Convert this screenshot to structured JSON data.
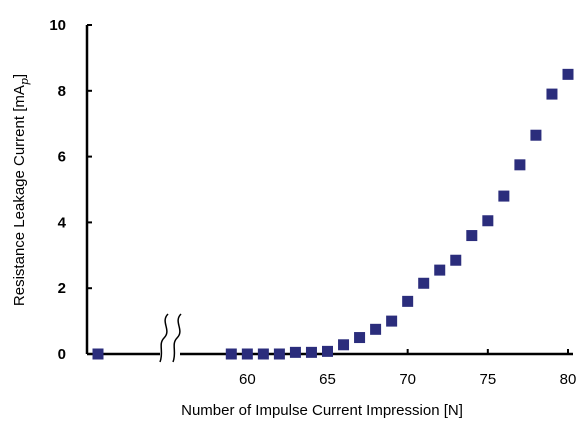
{
  "chart_data": {
    "type": "scatter",
    "title": "",
    "xlabel": "Number of Impulse Current Impression [N]",
    "ylabel": "Resistance Leakage Current [mA",
    "ylabel_sub": "p",
    "ylabel_close": "]",
    "xlim": [
      50,
      80
    ],
    "ylim": [
      0,
      10
    ],
    "x_ticks": [
      "60",
      "65",
      "70",
      "75",
      "80"
    ],
    "y_ticks": [
      "0",
      "2",
      "4",
      "6",
      "8",
      "10"
    ],
    "axis_break": true,
    "grid": false,
    "legend": "none",
    "marker_color": "#2b2d7c",
    "series": [
      {
        "x": [
          1,
          59,
          60,
          61,
          62,
          63,
          64,
          65,
          66,
          67,
          68,
          69,
          70,
          71,
          72,
          73,
          74,
          75,
          76,
          77,
          78,
          79,
          80
        ],
        "y": [
          0.0,
          0.0,
          0.0,
          0.0,
          0.0,
          0.05,
          0.05,
          0.08,
          0.28,
          0.5,
          0.75,
          1.0,
          1.6,
          2.15,
          2.55,
          2.85,
          3.6,
          4.05,
          4.8,
          5.75,
          6.65,
          7.9,
          8.5
        ]
      }
    ]
  }
}
